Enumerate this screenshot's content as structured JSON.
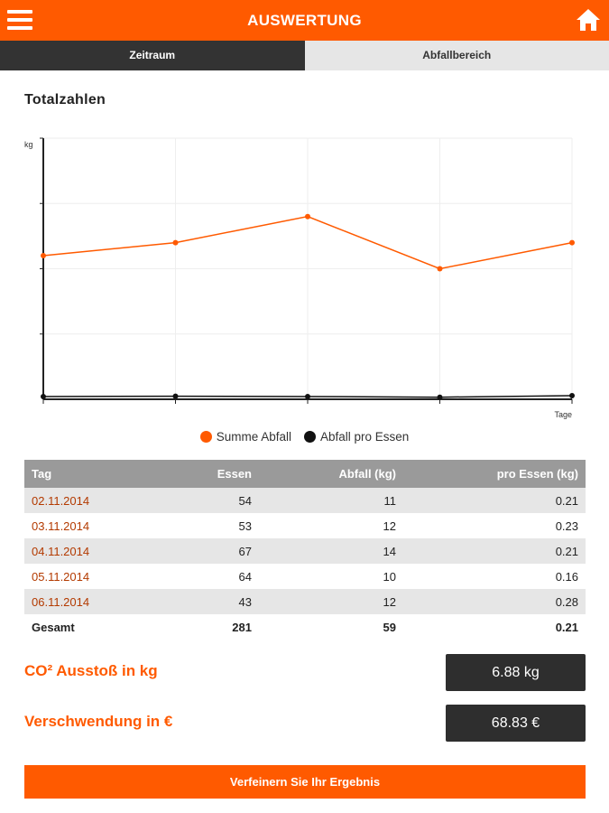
{
  "header": {
    "title": "AUSWERTUNG",
    "menu_icon": "menu-icon",
    "home_icon": "home-icon"
  },
  "tabs": [
    {
      "label": "Zeitraum",
      "active": true
    },
    {
      "label": "Abfallbereich",
      "active": false
    }
  ],
  "section_title": "Totalzahlen",
  "chart_data": {
    "type": "line",
    "x": [
      "02.11.2014",
      "03.11.2014",
      "04.11.2014",
      "05.11.2014",
      "06.11.2014"
    ],
    "series": [
      {
        "name": "Summe Abfall",
        "color": "#ff5a00",
        "values": [
          11,
          12,
          14,
          10,
          12
        ]
      },
      {
        "name": "Abfall pro Essen",
        "color": "#111111",
        "values": [
          0.21,
          0.23,
          0.21,
          0.16,
          0.28
        ]
      }
    ],
    "ylabel": "kg",
    "xlabel": "Tage",
    "ylim": [
      0,
      20
    ],
    "grid": true,
    "legend": "bottom"
  },
  "table": {
    "headers": [
      "Tag",
      "Essen",
      "Abfall (kg)",
      "pro Essen (kg)"
    ],
    "rows": [
      [
        "02.11.2014",
        "54",
        "11",
        "0.21"
      ],
      [
        "03.11.2014",
        "53",
        "12",
        "0.23"
      ],
      [
        "04.11.2014",
        "67",
        "14",
        "0.21"
      ],
      [
        "05.11.2014",
        "64",
        "10",
        "0.16"
      ],
      [
        "06.11.2014",
        "43",
        "12",
        "0.28"
      ]
    ],
    "total": [
      "Gesamt",
      "281",
      "59",
      "0.21"
    ]
  },
  "metrics": {
    "co2_label": "CO² Ausstoß in kg",
    "co2_value": "6.88 kg",
    "waste_label": "Verschwendung in €",
    "waste_value": "68.83 €"
  },
  "refine_button": "Verfeinern Sie Ihr Ergebnis",
  "colors": {
    "accent": "#ff5a00",
    "dark": "#333333",
    "header_gray": "#9a9a9a",
    "row_alt": "#e6e6e6",
    "date_text": "#b33a00"
  }
}
